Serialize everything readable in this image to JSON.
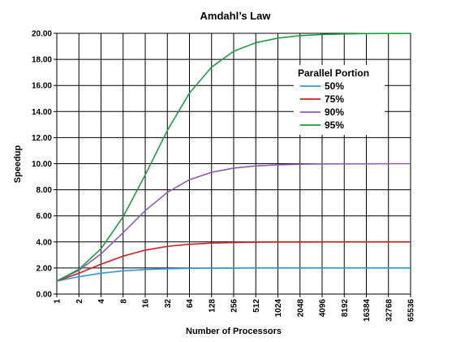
{
  "chart_data": {
    "type": "line",
    "title": "Amdahl’s Law",
    "xlabel": "Number of Processors",
    "ylabel": "Speedup",
    "x_scale": "log2",
    "x": [
      1,
      2,
      4,
      8,
      16,
      32,
      64,
      128,
      256,
      512,
      1024,
      2048,
      4096,
      8192,
      16384,
      32768,
      65536
    ],
    "x_tick_labels": [
      "1",
      "2",
      "4",
      "8",
      "16",
      "32",
      "64",
      "128",
      "256",
      "512",
      "1024",
      "2048",
      "4096",
      "8192",
      "16384",
      "32768",
      "65536"
    ],
    "ylim": [
      0,
      20
    ],
    "y_ticks": [
      0,
      2,
      4,
      6,
      8,
      10,
      12,
      14,
      16,
      18,
      20
    ],
    "y_tick_labels": [
      "0.00",
      "2.00",
      "4.00",
      "6.00",
      "8.00",
      "10.00",
      "12.00",
      "14.00",
      "16.00",
      "18.00",
      "20.00"
    ],
    "grid": true,
    "legend": {
      "title": "Parallel Portion",
      "placement": "top-right"
    },
    "series": [
      {
        "name": "50%",
        "color": "#2f9bd6",
        "values": [
          1.0,
          1.33,
          1.6,
          1.78,
          1.88,
          1.94,
          1.97,
          1.98,
          1.99,
          2.0,
          2.0,
          2.0,
          2.0,
          2.0,
          2.0,
          2.0,
          2.0
        ]
      },
      {
        "name": "75%",
        "color": "#cc1f1f",
        "values": [
          1.0,
          1.6,
          2.29,
          2.91,
          3.37,
          3.66,
          3.82,
          3.91,
          3.95,
          3.98,
          3.99,
          3.99,
          4.0,
          4.0,
          4.0,
          4.0,
          4.0
        ]
      },
      {
        "name": "90%",
        "color": "#8e5bb5",
        "values": [
          1.0,
          1.82,
          3.08,
          4.71,
          6.4,
          7.8,
          8.77,
          9.34,
          9.66,
          9.83,
          9.91,
          9.96,
          9.98,
          9.99,
          9.99,
          10.0,
          10.0
        ]
      },
      {
        "name": "95%",
        "color": "#1a9e3c",
        "values": [
          1.0,
          1.9,
          3.48,
          5.93,
          9.14,
          12.55,
          15.42,
          17.41,
          18.62,
          19.28,
          19.63,
          19.82,
          19.91,
          19.95,
          19.98,
          19.99,
          19.99
        ]
      }
    ]
  }
}
